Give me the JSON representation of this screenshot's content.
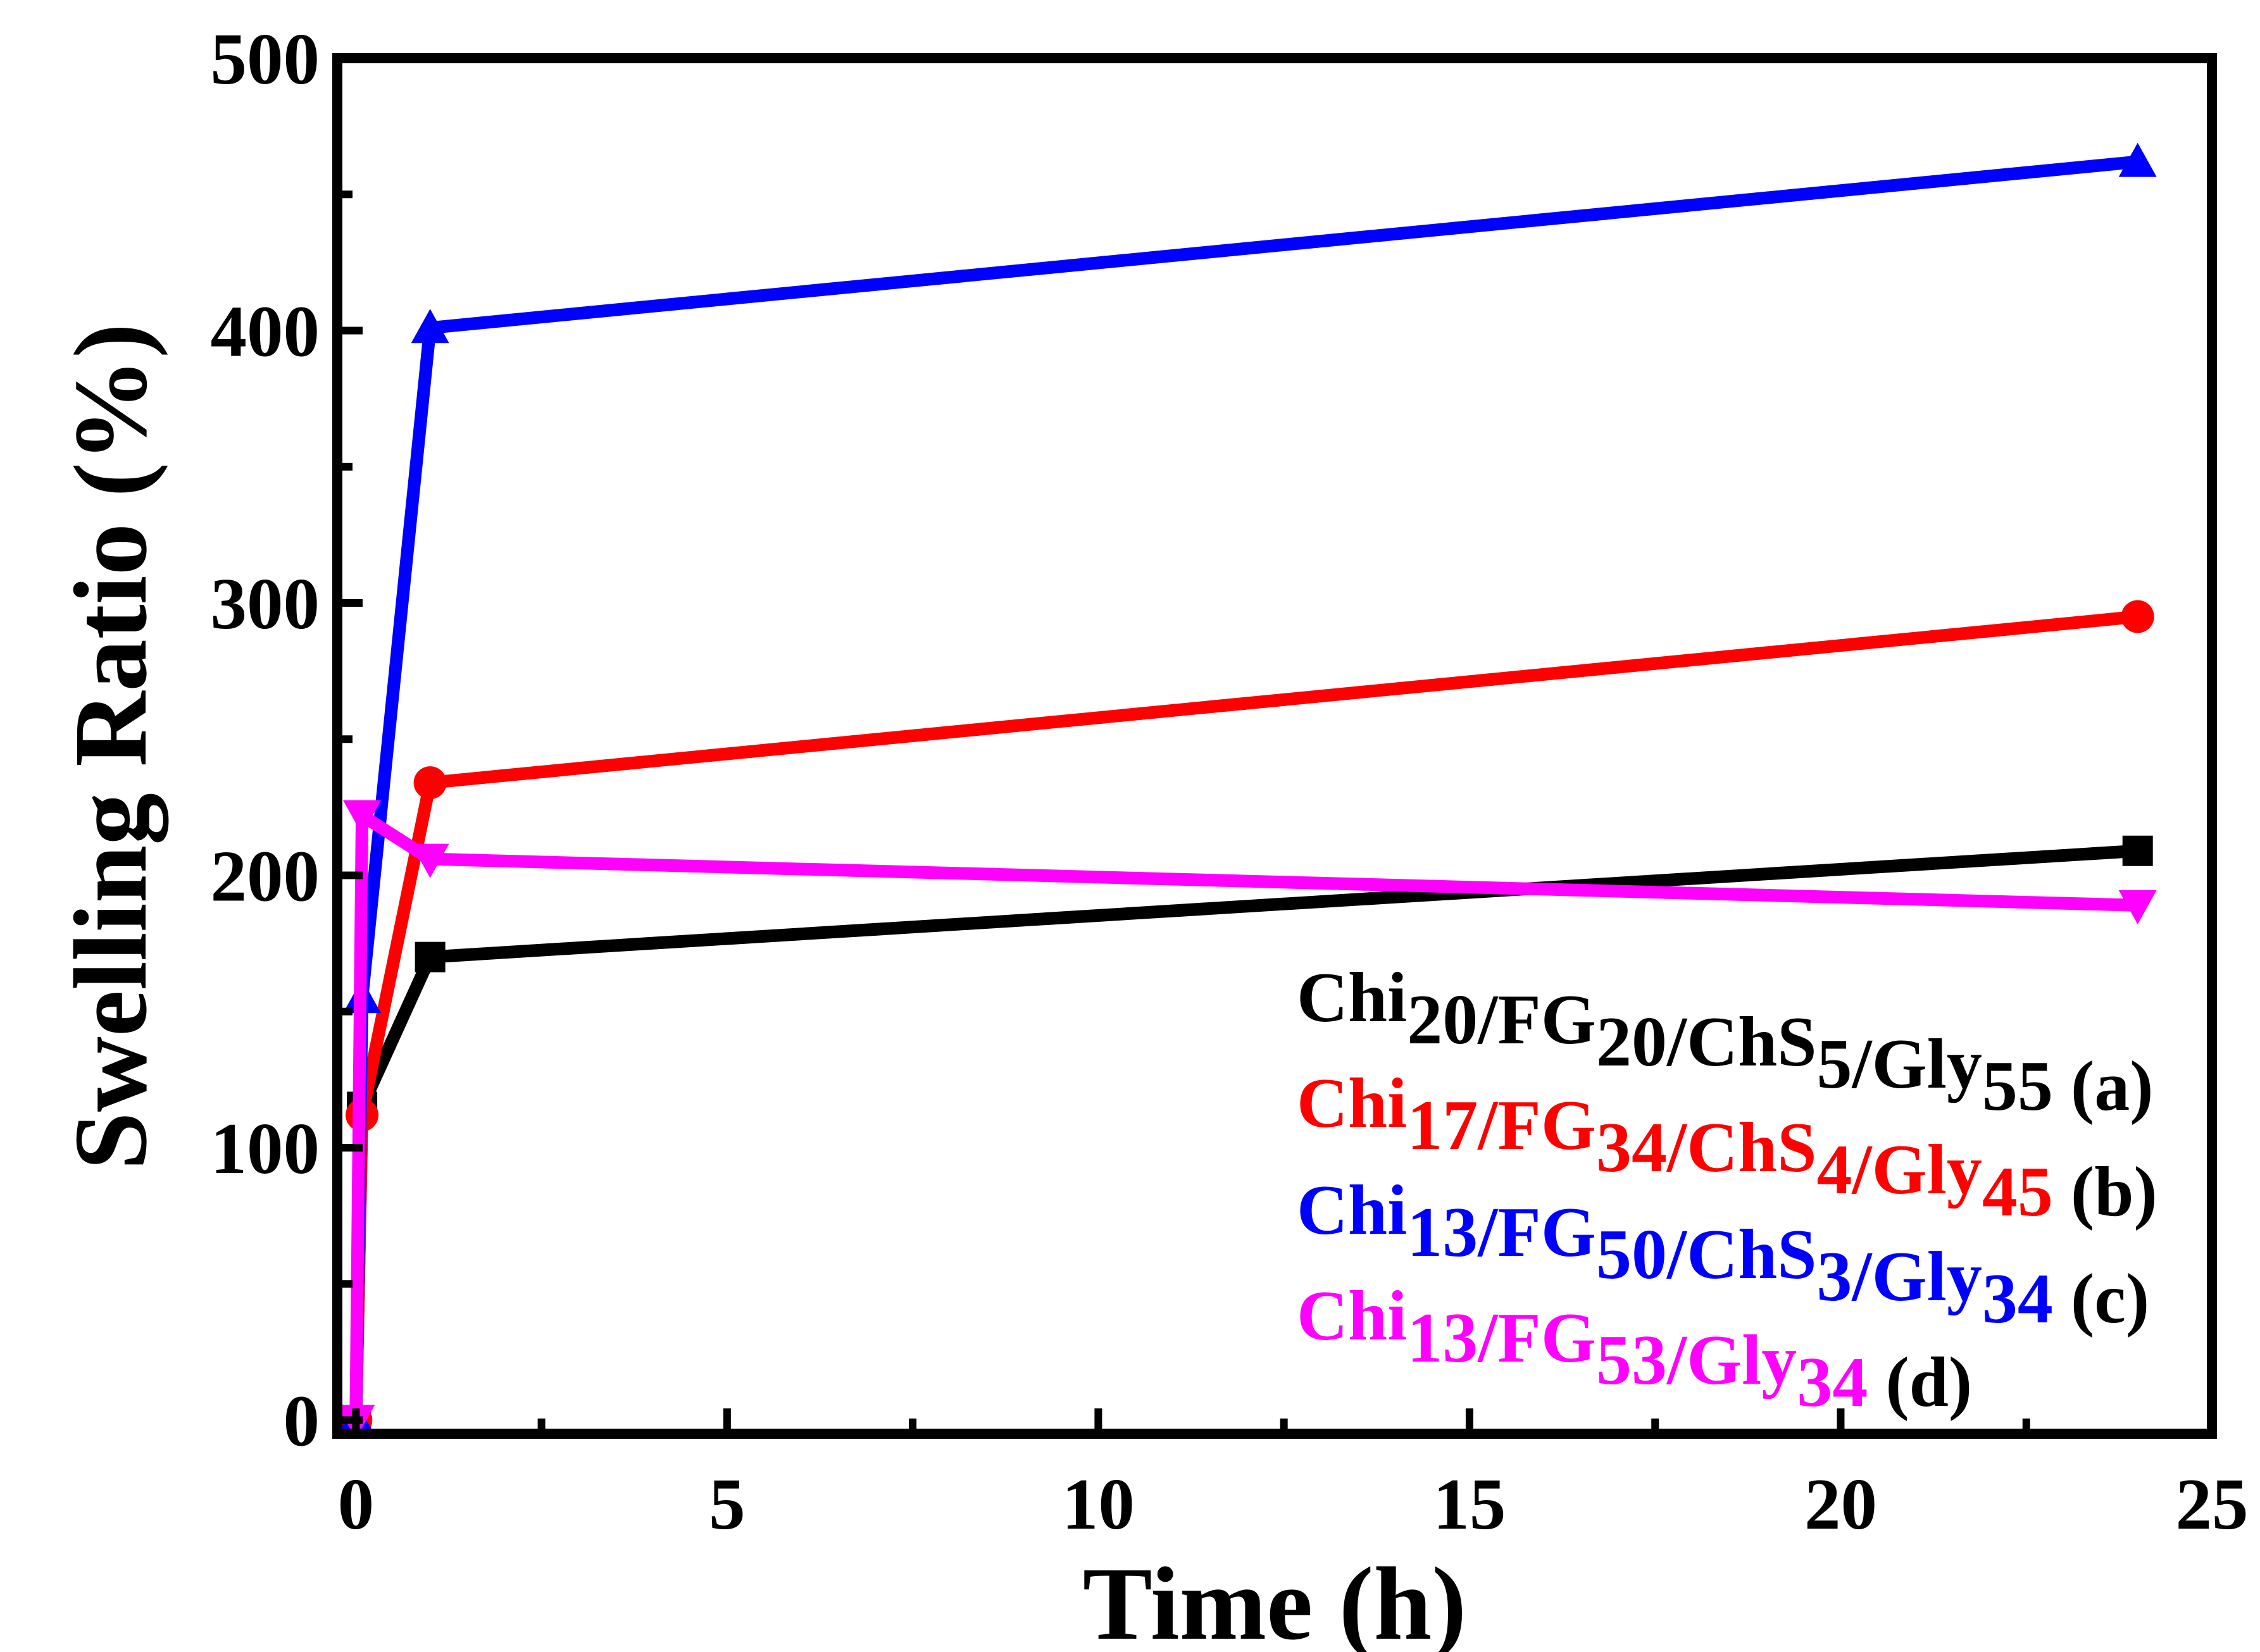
{
  "chart_data": {
    "type": "line",
    "title": "",
    "xlabel": "Time (h)",
    "ylabel": "Swelling Ratio (%)",
    "xlim": [
      -0.25,
      25
    ],
    "ylim": [
      -5,
      500
    ],
    "xticks": [
      0,
      5,
      10,
      15,
      20,
      25
    ],
    "yticks": [
      0,
      100,
      200,
      300,
      400,
      500
    ],
    "grid": false,
    "legend_position": "bottom-right",
    "x": [
      0,
      0.083,
      1,
      24
    ],
    "series": [
      {
        "name": "Chi20/FG20/ChS5/Gly55 (a)",
        "parts": [
          [
            "Chi",
            ""
          ],
          [
            "20",
            "sub"
          ],
          [
            "/FG",
            ""
          ],
          [
            "20",
            "sub"
          ],
          [
            "/ChS",
            ""
          ],
          [
            "5",
            "sub"
          ],
          [
            "/Gly",
            ""
          ],
          [
            "55",
            "sub"
          ]
        ],
        "tag": "(a)",
        "color": "#000000",
        "marker": "square",
        "values": [
          0,
          115,
          170,
          209
        ]
      },
      {
        "name": "Chi17/FG34/ChS4/Gly45 (b)",
        "parts": [
          [
            "Chi",
            ""
          ],
          [
            "17",
            "sub"
          ],
          [
            "/FG",
            ""
          ],
          [
            "34",
            "sub"
          ],
          [
            "/ChS",
            ""
          ],
          [
            "4",
            "sub"
          ],
          [
            "/Gly",
            ""
          ],
          [
            "45",
            "sub"
          ]
        ],
        "tag": "(b)",
        "color": "#ff0000",
        "marker": "circle",
        "values": [
          0,
          112,
          234,
          295
        ]
      },
      {
        "name": "Chi13/FG50/ChS3/Gly34 (c)",
        "parts": [
          [
            "Chi",
            ""
          ],
          [
            "13",
            "sub"
          ],
          [
            "/FG",
            ""
          ],
          [
            "50",
            "sub"
          ],
          [
            "/ChS",
            ""
          ],
          [
            "3",
            "sub"
          ],
          [
            "/Gly",
            ""
          ],
          [
            "34",
            "sub"
          ]
        ],
        "tag": "(c)",
        "color": "#0000ff",
        "marker": "triangle-up",
        "values": [
          0,
          155,
          401,
          462
        ]
      },
      {
        "name": "Chi13/FG53/Gly34 (d)",
        "parts": [
          [
            "Chi",
            ""
          ],
          [
            "13",
            "sub"
          ],
          [
            "/FG",
            ""
          ],
          [
            "53",
            "sub"
          ],
          [
            "/Gly",
            ""
          ],
          [
            "34",
            "sub"
          ]
        ],
        "tag": "(d)",
        "color": "#ff00ff",
        "marker": "triangle-down",
        "values": [
          0,
          222,
          206,
          189
        ]
      }
    ]
  }
}
